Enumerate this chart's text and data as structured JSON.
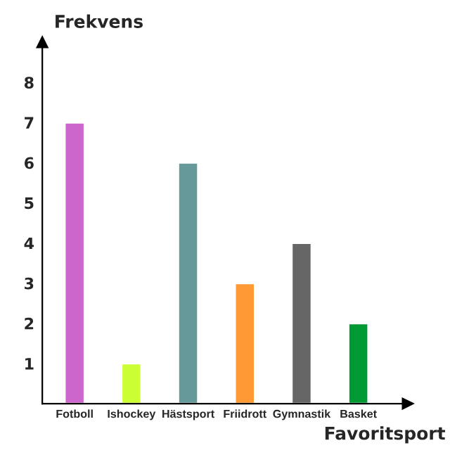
{
  "chart_data": {
    "type": "bar",
    "xlabel": "Favoritsport",
    "ylabel": "Frekvens",
    "categories": [
      "Fotboll",
      "Ishockey",
      "Hästsport",
      "Friidrott",
      "Gymnastik",
      "Basket"
    ],
    "values": [
      7,
      1,
      6,
      3,
      4,
      2
    ],
    "colors": [
      "#cc66cc",
      "#ccff33",
      "#669999",
      "#ff9933",
      "#666666",
      "#009933"
    ],
    "ylim": [
      0,
      9
    ],
    "yticks": [
      1,
      2,
      3,
      4,
      5,
      6,
      7,
      8
    ],
    "grid": false
  }
}
